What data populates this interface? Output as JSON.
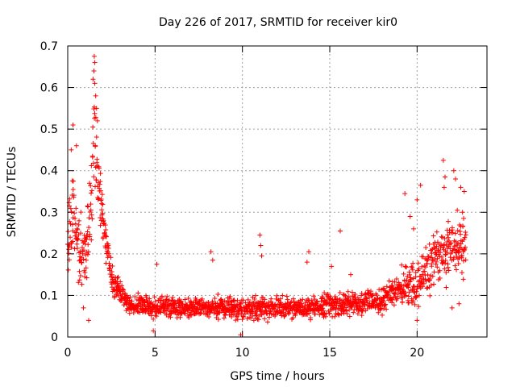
{
  "chart_data": {
    "type": "scatter",
    "title": "Day 226 of 2017, SRMTID for receiver kir0",
    "xlabel": "GPS time / hours",
    "ylabel": "SRMTID / TECUs",
    "xlim": [
      0,
      24
    ],
    "ylim": [
      0,
      0.7
    ],
    "xticks": [
      0,
      5,
      10,
      15,
      20
    ],
    "xtick_labels": [
      "0",
      "5",
      "10",
      "15",
      "20"
    ],
    "yticks": [
      0,
      0.1,
      0.2,
      0.3,
      0.4,
      0.5,
      0.6,
      0.7
    ],
    "ytick_labels": [
      "0",
      "0.1",
      "0.2",
      "0.3",
      "0.4",
      "0.5",
      "0.6",
      "0.7"
    ],
    "grid": true,
    "marker": "+",
    "color": "#ff0000",
    "series": [
      {
        "name": "SRMTID",
        "profile": [
          {
            "x": 0.0,
            "y": 0.22,
            "spread": 0.12
          },
          {
            "x": 0.3,
            "y": 0.3,
            "spread": 0.15
          },
          {
            "x": 0.6,
            "y": 0.22,
            "spread": 0.12
          },
          {
            "x": 1.0,
            "y": 0.18,
            "spread": 0.1
          },
          {
            "x": 1.3,
            "y": 0.3,
            "spread": 0.15
          },
          {
            "x": 1.5,
            "y": 0.5,
            "spread": 0.16
          },
          {
            "x": 1.8,
            "y": 0.35,
            "spread": 0.1
          },
          {
            "x": 2.2,
            "y": 0.22,
            "spread": 0.06
          },
          {
            "x": 2.6,
            "y": 0.13,
            "spread": 0.05
          },
          {
            "x": 3.5,
            "y": 0.08,
            "spread": 0.03
          },
          {
            "x": 5.0,
            "y": 0.07,
            "spread": 0.035
          },
          {
            "x": 8.0,
            "y": 0.07,
            "spread": 0.035
          },
          {
            "x": 10.0,
            "y": 0.07,
            "spread": 0.04
          },
          {
            "x": 13.0,
            "y": 0.07,
            "spread": 0.035
          },
          {
            "x": 16.0,
            "y": 0.08,
            "spread": 0.04
          },
          {
            "x": 18.0,
            "y": 0.09,
            "spread": 0.04
          },
          {
            "x": 19.0,
            "y": 0.12,
            "spread": 0.06
          },
          {
            "x": 20.0,
            "y": 0.13,
            "spread": 0.08
          },
          {
            "x": 21.0,
            "y": 0.19,
            "spread": 0.09
          },
          {
            "x": 22.0,
            "y": 0.22,
            "spread": 0.1
          },
          {
            "x": 22.8,
            "y": 0.22,
            "spread": 0.1
          }
        ],
        "outliers": [
          {
            "x": 0.3,
            "y": 0.51
          },
          {
            "x": 0.2,
            "y": 0.45
          },
          {
            "x": 0.5,
            "y": 0.46
          },
          {
            "x": 1.52,
            "y": 0.675
          },
          {
            "x": 1.55,
            "y": 0.66
          },
          {
            "x": 1.5,
            "y": 0.64
          },
          {
            "x": 1.45,
            "y": 0.62
          },
          {
            "x": 1.55,
            "y": 0.61
          },
          {
            "x": 1.6,
            "y": 0.58
          },
          {
            "x": 1.65,
            "y": 0.55
          },
          {
            "x": 1.7,
            "y": 0.52
          },
          {
            "x": 0.9,
            "y": 0.07
          },
          {
            "x": 1.2,
            "y": 0.04
          },
          {
            "x": 4.9,
            "y": 0.015
          },
          {
            "x": 9.9,
            "y": 0.005
          },
          {
            "x": 5.1,
            "y": 0.175
          },
          {
            "x": 8.2,
            "y": 0.205
          },
          {
            "x": 8.3,
            "y": 0.185
          },
          {
            "x": 11.0,
            "y": 0.245
          },
          {
            "x": 11.05,
            "y": 0.22
          },
          {
            "x": 11.1,
            "y": 0.195
          },
          {
            "x": 13.8,
            "y": 0.205
          },
          {
            "x": 13.7,
            "y": 0.18
          },
          {
            "x": 15.6,
            "y": 0.255
          },
          {
            "x": 15.1,
            "y": 0.17
          },
          {
            "x": 16.2,
            "y": 0.15
          },
          {
            "x": 19.3,
            "y": 0.345
          },
          {
            "x": 19.6,
            "y": 0.29
          },
          {
            "x": 19.8,
            "y": 0.26
          },
          {
            "x": 20.0,
            "y": 0.33
          },
          {
            "x": 20.2,
            "y": 0.365
          },
          {
            "x": 21.5,
            "y": 0.425
          },
          {
            "x": 21.6,
            "y": 0.385
          },
          {
            "x": 21.55,
            "y": 0.36
          },
          {
            "x": 22.1,
            "y": 0.4
          },
          {
            "x": 22.2,
            "y": 0.38
          },
          {
            "x": 22.5,
            "y": 0.36
          },
          {
            "x": 22.7,
            "y": 0.35
          },
          {
            "x": 22.3,
            "y": 0.305
          },
          {
            "x": 22.6,
            "y": 0.3
          },
          {
            "x": 22.0,
            "y": 0.07
          },
          {
            "x": 22.4,
            "y": 0.08
          },
          {
            "x": 20.0,
            "y": 0.04
          }
        ]
      }
    ]
  }
}
